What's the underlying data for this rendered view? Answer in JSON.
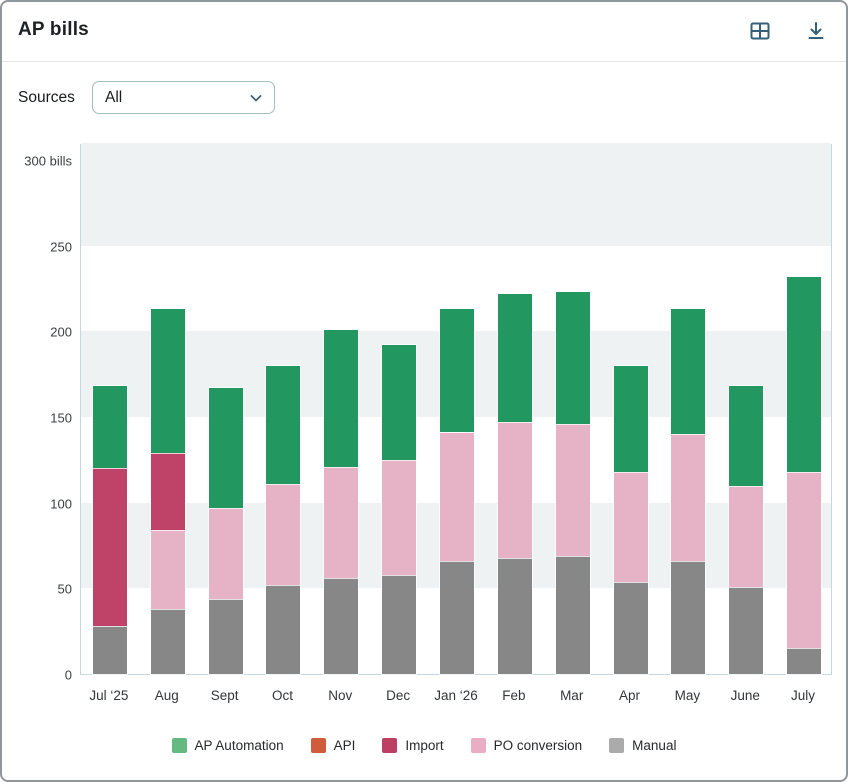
{
  "header": {
    "title": "AP bills",
    "icons": [
      {
        "name": "table-view-icon"
      },
      {
        "name": "download-icon"
      }
    ],
    "icon_color": "#33617a"
  },
  "filters": {
    "sources_label": "Sources",
    "sources_value": "All"
  },
  "chart_data": {
    "type": "bar",
    "stacked": true,
    "title": "",
    "xlabel": "",
    "ylabel": "bills",
    "ylim": [
      0,
      300
    ],
    "grid": "alternating horizontal bands every 50 units",
    "band_color": "#eef2f3",
    "band_ranges": [
      [
        250,
        310
      ],
      [
        150,
        200
      ],
      [
        50,
        100
      ]
    ],
    "yticks": [
      {
        "value": 300,
        "label": "300 bills"
      },
      {
        "value": 250,
        "label": "250"
      },
      {
        "value": 200,
        "label": "200"
      },
      {
        "value": 150,
        "label": "150"
      },
      {
        "value": 100,
        "label": "100"
      },
      {
        "value": 50,
        "label": "50"
      },
      {
        "value": 0,
        "label": "0"
      }
    ],
    "categories": [
      "Jul ‘25",
      "Aug",
      "Sept",
      "Oct",
      "Nov",
      "Dec",
      "Jan ‘26",
      "Feb",
      "Mar",
      "Apr",
      "May",
      "June",
      "July"
    ],
    "series": [
      {
        "name": "Manual",
        "color": "#878787",
        "legend_color": "#ababab",
        "values": [
          28,
          38,
          44,
          52,
          56,
          58,
          66,
          68,
          69,
          54,
          66,
          51,
          15
        ]
      },
      {
        "name": "PO conversion",
        "color": "#e5b3c5",
        "legend_color": "#e9aec4",
        "values": [
          0,
          46,
          53,
          59,
          65,
          67,
          75,
          79,
          77,
          64,
          74,
          59,
          103
        ]
      },
      {
        "name": "Import",
        "color": "#bf4368",
        "legend_color": "#bc4063",
        "values": [
          92,
          45,
          0,
          0,
          0,
          0,
          0,
          0,
          0,
          0,
          0,
          0,
          0
        ]
      },
      {
        "name": "API",
        "color": "#d15c3d",
        "legend_color": "#d15c3d",
        "values": [
          0,
          0,
          0,
          0,
          0,
          0,
          0,
          0,
          0,
          0,
          0,
          0,
          0
        ]
      },
      {
        "name": "AP Automation",
        "color": "#22975f",
        "legend_color": "#65ba82",
        "values": [
          48,
          84,
          70,
          69,
          80,
          67,
          72,
          75,
          77,
          62,
          73,
          58,
          114
        ]
      }
    ],
    "totals": [
      168,
      213,
      167,
      180,
      201,
      192,
      213,
      222,
      223,
      180,
      213,
      168,
      232
    ],
    "legend_order": [
      "AP Automation",
      "API",
      "Import",
      "PO conversion",
      "Manual"
    ],
    "legend_position": "bottom center"
  }
}
